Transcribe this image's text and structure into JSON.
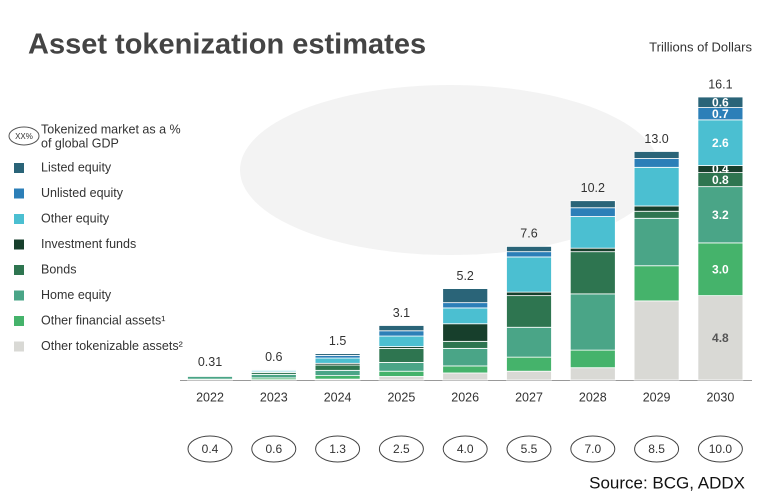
{
  "chart_data": {
    "type": "stacked_bar",
    "title": "Asset tokenization estimates",
    "unit_label": "Trillions of Dollars",
    "source": "Source: BCG, ADDX",
    "gdp_legend_symbol": "XX%",
    "gdp_legend_text": [
      "Tokenized market as a %",
      "of global GDP"
    ],
    "categories": [
      "2022",
      "2023",
      "2024",
      "2025",
      "2026",
      "2027",
      "2028",
      "2029",
      "2030"
    ],
    "totals": [
      0.31,
      0.6,
      1.5,
      3.1,
      5.2,
      7.6,
      10.2,
      13.0,
      16.1
    ],
    "total_labels": [
      "0.31",
      "0.6",
      "1.5",
      "3.1",
      "5.2",
      "7.6",
      "10.2",
      "13.0",
      "16.1"
    ],
    "gdp_pct_labels": [
      "0.4",
      "0.6",
      "1.3",
      "2.5",
      "4.0",
      "5.5",
      "7.0",
      "8.5",
      "10.0"
    ],
    "series": [
      {
        "name": "Listed equity",
        "color": "#2a6478",
        "values": [
          0.01,
          0.02,
          0.1,
          0.3,
          0.8,
          0.3,
          0.4,
          0.4,
          0.6
        ],
        "value_labels": [
          null,
          null,
          null,
          null,
          null,
          null,
          null,
          null,
          "0.6"
        ]
      },
      {
        "name": "Unlisted equity",
        "color": "#2c7fb8",
        "values": [
          0.01,
          0.03,
          0.15,
          0.3,
          0.3,
          0.3,
          0.5,
          0.5,
          0.7
        ],
        "value_labels": [
          null,
          null,
          null,
          null,
          null,
          null,
          null,
          null,
          "0.7"
        ]
      },
      {
        "name": "Other equity",
        "color": "#4bbfd1",
        "values": [
          0.02,
          0.08,
          0.3,
          0.6,
          0.9,
          2.0,
          1.8,
          2.2,
          2.6
        ],
        "value_labels": [
          null,
          null,
          null,
          null,
          null,
          null,
          null,
          null,
          "2.6"
        ]
      },
      {
        "name": "Investment funds",
        "color": "#173f2c",
        "values": [
          0.02,
          0.05,
          0.1,
          0.1,
          1.0,
          0.2,
          0.2,
          0.3,
          0.4
        ],
        "value_labels": [
          null,
          null,
          null,
          null,
          null,
          null,
          null,
          null,
          "0.4"
        ]
      },
      {
        "name": "Bonds",
        "color": "#2e7550",
        "values": [
          0.05,
          0.1,
          0.3,
          0.8,
          0.4,
          1.8,
          2.4,
          0.4,
          0.8
        ],
        "value_labels": [
          null,
          null,
          null,
          null,
          null,
          null,
          null,
          null,
          "0.8"
        ]
      },
      {
        "name": "Home equity",
        "color": "#4aa587",
        "values": [
          0.15,
          0.2,
          0.3,
          0.5,
          1.0,
          1.7,
          3.2,
          2.7,
          3.2
        ],
        "value_labels": [
          null,
          null,
          null,
          null,
          null,
          null,
          null,
          null,
          "3.2"
        ]
      },
      {
        "name": "Other financial assets¹",
        "color": "#45b36b",
        "values": [
          0.05,
          0.1,
          0.2,
          0.3,
          0.4,
          0.8,
          1.0,
          2.0,
          3.0
        ],
        "value_labels": [
          null,
          null,
          null,
          null,
          null,
          null,
          null,
          null,
          "3.0"
        ]
      },
      {
        "name": "Other tokenizable assets²",
        "color": "#d9d9d5",
        "values": [
          0.0,
          0.02,
          0.05,
          0.2,
          0.4,
          0.5,
          0.7,
          4.5,
          4.8
        ],
        "value_labels": [
          null,
          null,
          null,
          null,
          null,
          null,
          null,
          null,
          "4.8"
        ]
      }
    ]
  }
}
